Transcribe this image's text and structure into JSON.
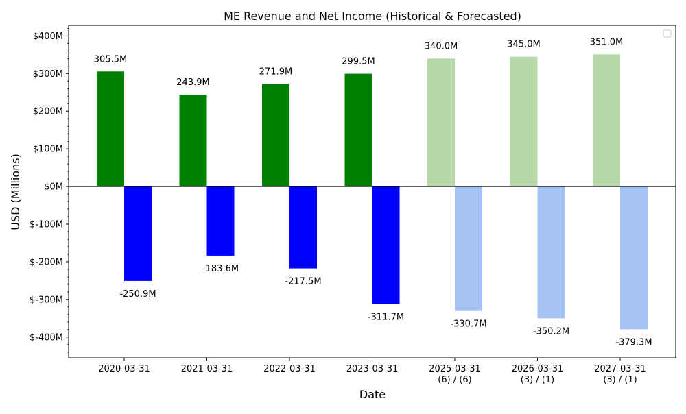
{
  "chart_data": {
    "type": "bar",
    "title": "ME Revenue and Net Income (Historical & Forecasted)",
    "xlabel": "Date",
    "ylabel": "USD (Millions)",
    "ylim": [
      -455,
      428
    ],
    "yticks": [
      -400,
      -300,
      -200,
      -100,
      0,
      100,
      200,
      300,
      400
    ],
    "ytick_labels": [
      "$-400M",
      "$-300M",
      "$-200M",
      "$-100M",
      "$0M",
      "$100M",
      "$200M",
      "$300M",
      "$400M"
    ],
    "categories": [
      "2020-03-31",
      "2021-03-31",
      "2022-03-31",
      "2023-03-31",
      "2025-03-31\n(6) / (6)",
      "2026-03-31\n(3) / (1)",
      "2027-03-31\n(3) / (1)"
    ],
    "forecast": [
      false,
      false,
      false,
      false,
      true,
      true,
      true
    ],
    "grid": false,
    "legend": "top-right (empty)",
    "series": [
      {
        "key": "revenue",
        "values": [
          305.5,
          243.9,
          271.9,
          299.5,
          340.0,
          345.0,
          351.0
        ],
        "labels": [
          "305.5M",
          "243.9M",
          "271.9M",
          "299.5M",
          "340.0M",
          "345.0M",
          "351.0M"
        ],
        "color": "#008000",
        "forecast_color": "#b7d9a9"
      },
      {
        "key": "net_income",
        "values": [
          -250.9,
          -183.6,
          -217.5,
          -311.7,
          -330.7,
          -350.2,
          -379.3
        ],
        "labels": [
          "-250.9M",
          "-183.6M",
          "-217.5M",
          "-311.7M",
          "-330.7M",
          "-350.2M",
          "-379.3M"
        ],
        "color": "#0000ff",
        "forecast_color": "#a4c2f4"
      }
    ]
  }
}
